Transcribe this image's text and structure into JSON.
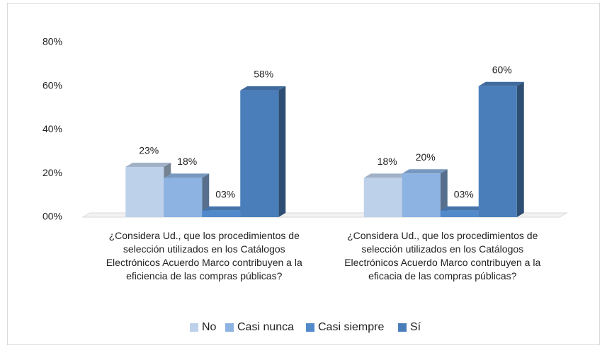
{
  "chart_data": {
    "type": "bar3d",
    "categories": [
      "¿Considera Ud., que los procedimientos de selección utilizados en los Catálogos Electrónicos Acuerdo Marco contribuyen a la eficiencia de las compras públicas?",
      "¿Considera Ud., que los procedimientos de selección utilizados en los Catálogos Electrónicos Acuerdo Marco contribuyen a la eficacia de las compras públicas?"
    ],
    "series": [
      {
        "name": "No",
        "color": "#bdd1ea",
        "values": [
          23,
          18
        ],
        "value_labels": [
          "23%",
          "18%"
        ]
      },
      {
        "name": "Casi nunca",
        "color": "#8db3e2",
        "values": [
          18,
          20
        ],
        "value_labels": [
          "18%",
          "20%"
        ]
      },
      {
        "name": "Casi siempre",
        "color": "#5189cb",
        "values": [
          3,
          3
        ],
        "value_labels": [
          "03%",
          "03%"
        ]
      },
      {
        "name": "Sí",
        "color": "#4a7eba",
        "values": [
          58,
          60
        ],
        "value_labels": [
          "58%",
          "60%"
        ]
      }
    ],
    "ylim": [
      0,
      80
    ],
    "yticks": [
      {
        "value": 0,
        "label": "00%"
      },
      {
        "value": 20,
        "label": "20%"
      },
      {
        "value": 40,
        "label": "40%"
      },
      {
        "value": 60,
        "label": "60%"
      },
      {
        "value": 80,
        "label": "80%"
      }
    ],
    "grid": false,
    "legend": "bottom"
  }
}
